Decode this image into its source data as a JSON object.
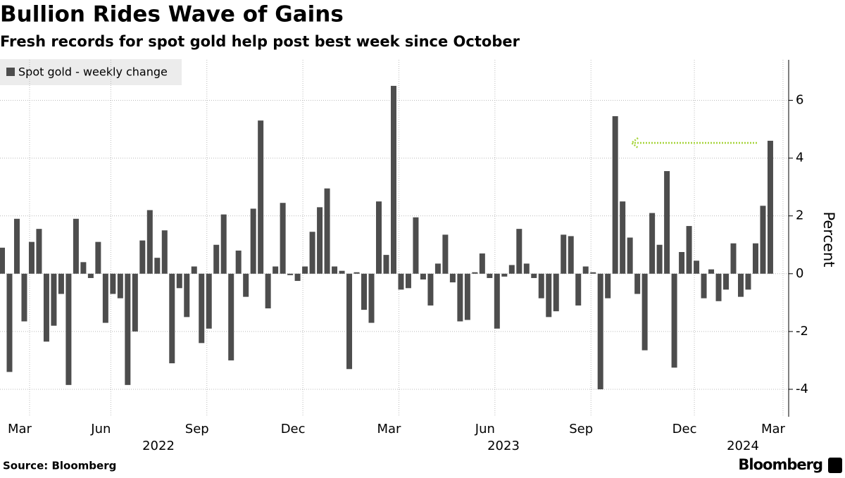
{
  "chart_data": {
    "type": "bar",
    "title": "Bullion Rides Wave of Gains",
    "subtitle": "Fresh records for spot gold help post best week since October",
    "y_axis_label": "Percent",
    "source": "Source: Bloomberg",
    "brand": "Bloomberg",
    "x_group_labels": [
      "2022",
      "2023",
      "2024"
    ],
    "categories": [
      null,
      null,
      "Mar",
      null,
      null,
      null,
      null,
      null,
      null,
      null,
      null,
      null,
      null,
      "Jun",
      null,
      null,
      null,
      null,
      null,
      null,
      null,
      null,
      null,
      null,
      null,
      null,
      "Sep",
      null,
      null,
      null,
      null,
      null,
      null,
      null,
      null,
      null,
      null,
      null,
      null,
      "Dec",
      null,
      null,
      null,
      null,
      null,
      null,
      null,
      null,
      null,
      null,
      null,
      null,
      "Mar",
      null,
      null,
      null,
      null,
      null,
      null,
      null,
      null,
      null,
      null,
      null,
      null,
      "Jun",
      null,
      null,
      null,
      null,
      null,
      null,
      null,
      null,
      null,
      null,
      null,
      null,
      "Sep",
      null,
      null,
      null,
      null,
      null,
      null,
      null,
      null,
      null,
      null,
      null,
      null,
      null,
      "Dec",
      null,
      null,
      null,
      null,
      null,
      null,
      null,
      null,
      null,
      null,
      null,
      "Mar"
    ],
    "series": [
      {
        "name": "Spot gold - weekly change",
        "color": "#4d4d4d",
        "values": [
          0.9,
          -3.4,
          1.9,
          -1.65,
          1.1,
          1.55,
          -2.35,
          -1.8,
          -0.7,
          -3.85,
          1.9,
          0.4,
          -0.15,
          1.1,
          -1.7,
          -0.7,
          -0.85,
          -3.85,
          -2.0,
          1.15,
          2.2,
          0.55,
          1.5,
          -3.1,
          -0.5,
          -1.5,
          0.25,
          -2.4,
          -1.9,
          1.0,
          2.05,
          -3.0,
          0.8,
          -0.8,
          2.25,
          5.3,
          -1.2,
          0.25,
          2.45,
          -0.05,
          -0.25,
          0.25,
          1.45,
          2.3,
          2.95,
          0.25,
          0.1,
          -3.3,
          0.05,
          -1.25,
          -1.7,
          2.5,
          0.65,
          6.5,
          -0.55,
          -0.5,
          1.95,
          -0.2,
          -1.1,
          0.35,
          1.35,
          -0.3,
          -1.65,
          -1.6,
          0.05,
          0.7,
          -0.15,
          -1.9,
          -0.1,
          0.3,
          1.55,
          0.35,
          -0.15,
          -0.85,
          -1.5,
          -1.3,
          1.35,
          1.3,
          -1.1,
          0.25,
          0.05,
          -4.0,
          -0.85,
          5.45,
          2.5,
          1.25,
          -0.7,
          -2.65,
          2.1,
          1.0,
          3.55,
          -3.25,
          0.75,
          1.65,
          0.45,
          -0.85,
          0.15,
          -0.95,
          -0.55,
          1.05,
          -0.8,
          -0.55,
          1.05,
          2.35,
          4.6
        ]
      }
    ],
    "ylim": [
      -4.95,
      7.4
    ],
    "yticks": [
      -4,
      -2,
      0,
      2,
      4,
      6
    ],
    "grid": true
  }
}
